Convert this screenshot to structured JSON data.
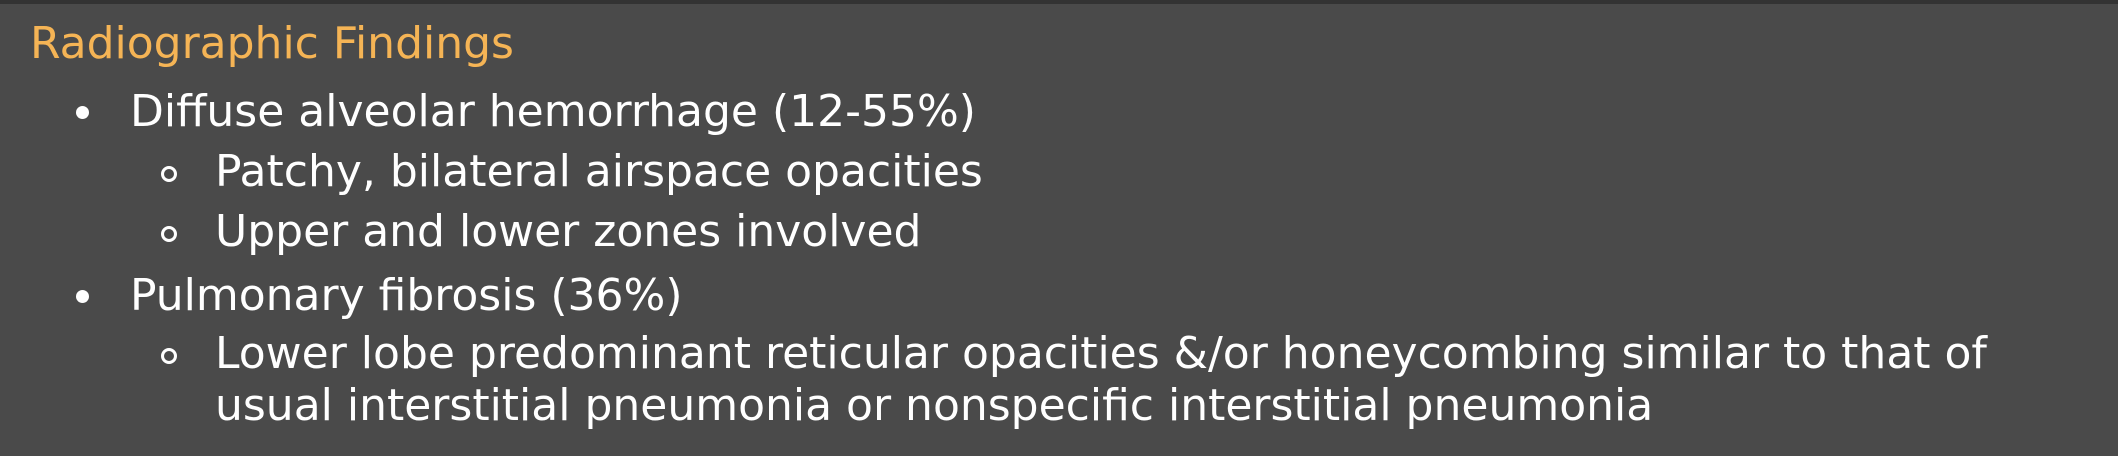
{
  "slide": {
    "title": "Radiographic Findings",
    "items": [
      {
        "text": "Diffuse alveolar hemorrhage (12-55%)",
        "subitems": [
          "Patchy, bilateral airspace opacities",
          "Upper and lower zones involved"
        ]
      },
      {
        "text": "Pulmonary fibrosis (36%)",
        "subitems": [
          "Lower lobe predominant reticular opacities &/or honeycombing similar to that of usual interstitial pneumonia or nonspecific interstitial pneumonia"
        ]
      }
    ]
  },
  "colors": {
    "background": "#4a4a4a",
    "title": "#f5b455",
    "text": "#ffffff"
  }
}
